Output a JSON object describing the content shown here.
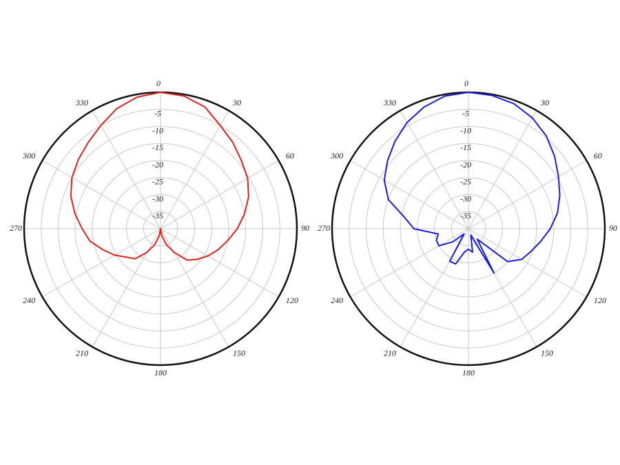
{
  "chart_data": [
    {
      "type": "polar",
      "theta": [
        0,
        10,
        20,
        30,
        40,
        50,
        60,
        70,
        80,
        90,
        100,
        110,
        120,
        130,
        140,
        150,
        160,
        170,
        180,
        190,
        200,
        210,
        220,
        230,
        240,
        250,
        260,
        270,
        280,
        290,
        300,
        310,
        320,
        330,
        340,
        350
      ],
      "series": [
        {
          "color": "#e02020",
          "values": [
            0,
            -0.5,
            -2,
            -5,
            -7,
            -9,
            -10.5,
            -12.5,
            -15,
            -17.5,
            -20,
            -22,
            -24,
            -26,
            -28,
            -32,
            -35,
            -38,
            -40,
            -38,
            -35,
            -32,
            -28.5,
            -27,
            -24.5,
            -22,
            -19,
            -17,
            -14.5,
            -12,
            -10,
            -8.5,
            -7,
            -5,
            -2.5,
            -0.8
          ]
        }
      ],
      "thetaticks": [
        0,
        30,
        60,
        90,
        120,
        150,
        180,
        210,
        240,
        270,
        300,
        330
      ],
      "rlim": [
        -40,
        0
      ],
      "rticks": [
        -5,
        -10,
        -15,
        -20,
        -25,
        -30,
        -35
      ],
      "grid": true
    },
    {
      "type": "polar",
      "theta": [
        0,
        10,
        20,
        30,
        40,
        50,
        60,
        70,
        80,
        90,
        100,
        110,
        120,
        130,
        140,
        150,
        160,
        170,
        180,
        190,
        200,
        210,
        220,
        230,
        240,
        250,
        260,
        270,
        280,
        290,
        300,
        310,
        320,
        330,
        340,
        350
      ],
      "series": [
        {
          "color": "#1a1ae0",
          "values": [
            0,
            -0.3,
            -1,
            -2.5,
            -4.5,
            -7,
            -9.5,
            -11.5,
            -13.5,
            -16,
            -18.5,
            -20.5,
            -22,
            -25,
            -36,
            -25,
            -38,
            -33,
            -34,
            -33,
            -29,
            -29,
            -38,
            -34,
            -30,
            -30,
            -31,
            -24,
            -21,
            -15,
            -11.5,
            -9,
            -6.5,
            -4,
            -2,
            -0.5
          ]
        }
      ],
      "thetaticks": [
        0,
        30,
        60,
        90,
        120,
        150,
        180,
        210,
        240,
        270,
        300,
        330
      ],
      "rlim": [
        -40,
        0
      ],
      "rticks": [
        -5,
        -10,
        -15,
        -20,
        -25,
        -30,
        -35
      ],
      "grid": true
    }
  ]
}
